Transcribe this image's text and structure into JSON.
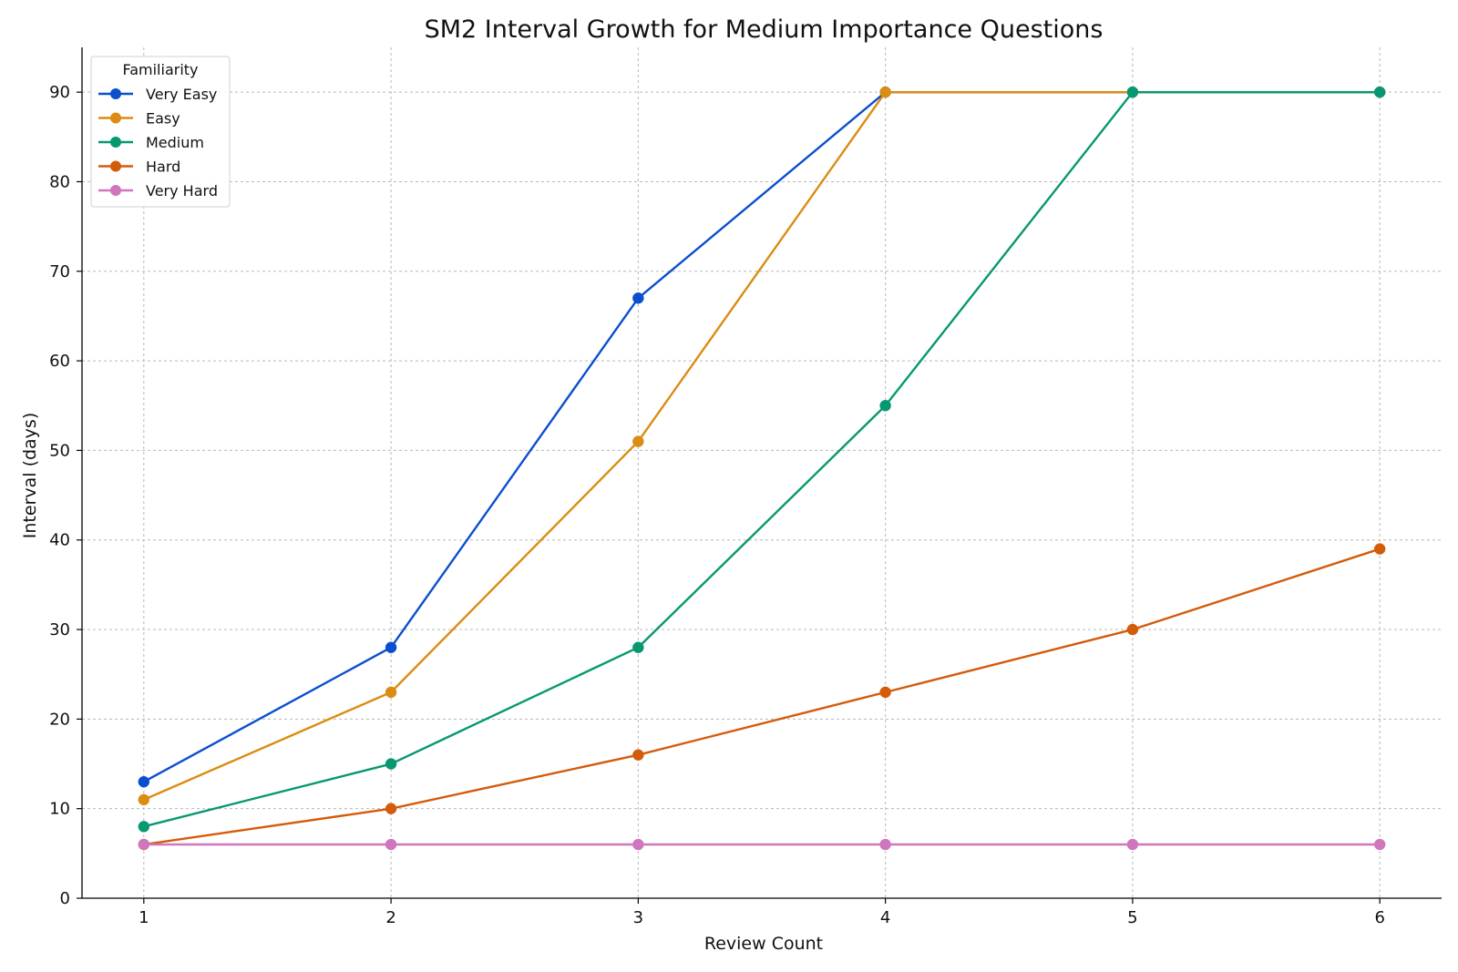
{
  "chart_data": {
    "type": "line",
    "title": "SM2 Interval Growth for Medium Importance Questions",
    "xlabel": "Review Count",
    "ylabel": "Interval (days)",
    "x": [
      1,
      2,
      3,
      4,
      5,
      6
    ],
    "x_ticks": [
      "1",
      "2",
      "3",
      "4",
      "5",
      "6"
    ],
    "y_ticks": [
      "0",
      "10",
      "20",
      "30",
      "40",
      "50",
      "60",
      "70",
      "80",
      "90"
    ],
    "xlim": [
      0.75,
      6.25
    ],
    "ylim": [
      0,
      95
    ],
    "grid": true,
    "legend": {
      "title": "Familiarity",
      "placement": "top-left"
    },
    "series": [
      {
        "name": "Very Easy",
        "color": "#0b4fcf",
        "values": [
          13,
          28,
          67,
          90,
          90,
          90
        ]
      },
      {
        "name": "Easy",
        "color": "#db8c12",
        "values": [
          11,
          23,
          51,
          90,
          90,
          90
        ]
      },
      {
        "name": "Medium",
        "color": "#079872",
        "values": [
          8,
          15,
          28,
          55,
          90,
          90
        ]
      },
      {
        "name": "Hard",
        "color": "#d45b0a",
        "values": [
          6,
          10,
          16,
          23,
          30,
          39
        ]
      },
      {
        "name": "Very Hard",
        "color": "#cf76bd",
        "values": [
          6,
          6,
          6,
          6,
          6,
          6
        ]
      }
    ]
  }
}
